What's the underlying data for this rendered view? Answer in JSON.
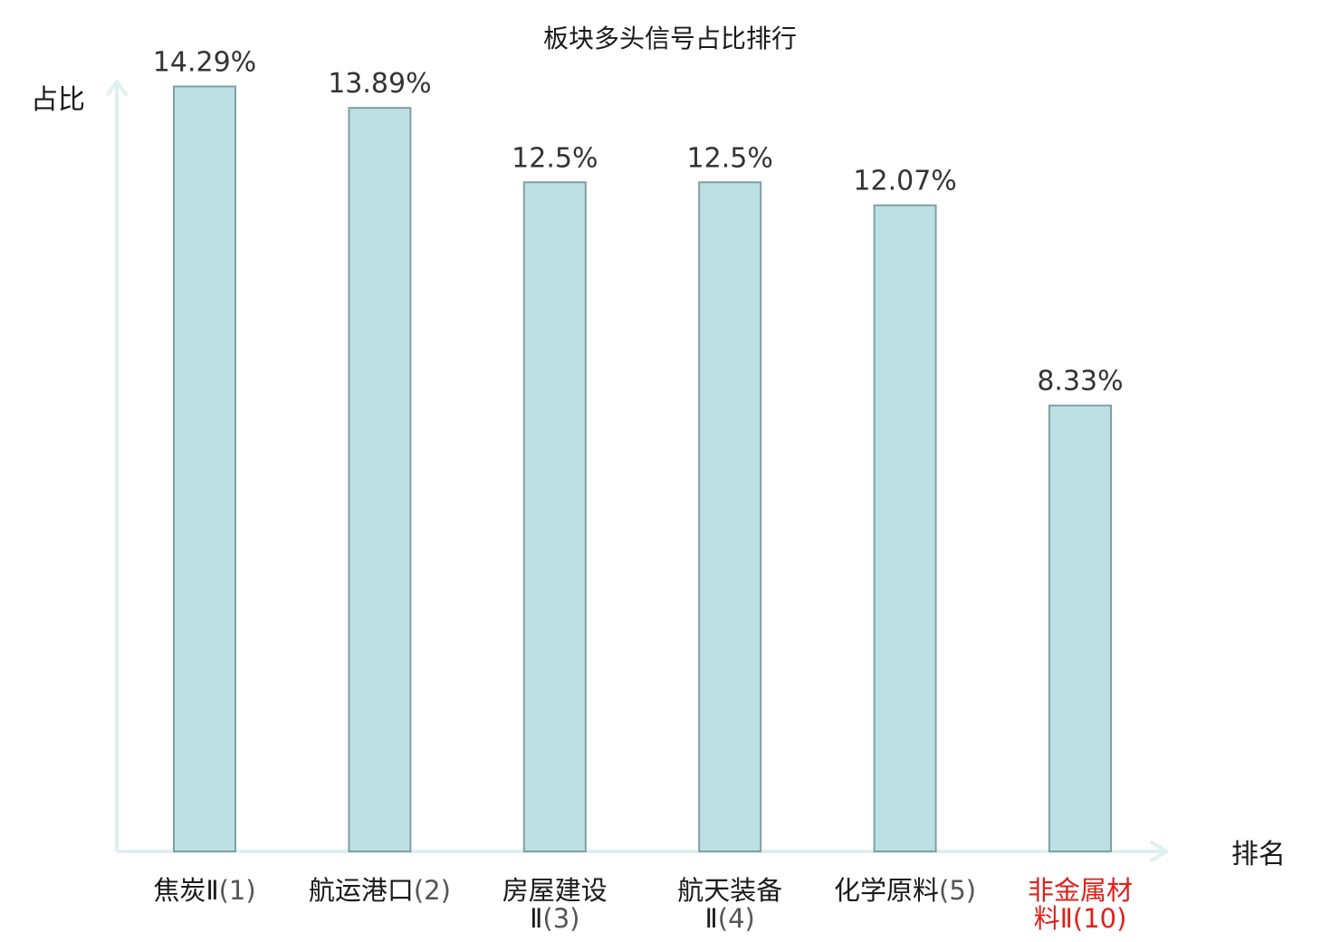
{
  "chart_data": {
    "type": "bar",
    "title": "板块多头信号占比排行",
    "ylabel": "占比",
    "xlabel": "排名",
    "ylim": [
      0,
      15
    ],
    "grid": false,
    "legend": "none",
    "categories": [
      {
        "lines": [
          "焦炭Ⅱ"
        ],
        "rank": "(1)",
        "highlight": false
      },
      {
        "lines": [
          "航运港口"
        ],
        "rank": "(2)",
        "highlight": false
      },
      {
        "lines": [
          "房屋建设",
          "Ⅱ"
        ],
        "rank": "(3)",
        "highlight": false
      },
      {
        "lines": [
          "航天装备",
          "Ⅱ"
        ],
        "rank": "(4)",
        "highlight": false
      },
      {
        "lines": [
          "化学原料"
        ],
        "rank": "(5)",
        "highlight": false
      },
      {
        "lines": [
          "非金属材",
          "料Ⅱ"
        ],
        "rank": "(10)",
        "highlight": true
      }
    ],
    "values": [
      14.29,
      13.89,
      12.5,
      12.5,
      12.07,
      8.33
    ],
    "value_labels": [
      "14.29%",
      "13.89%",
      "12.5%",
      "12.5%",
      "12.07%",
      "8.33%"
    ],
    "colors": {
      "bar_fill": "#bce0e3",
      "bar_stroke": "#7fa0a3",
      "axis": "#dff1ee",
      "highlight_label": "#e0201b"
    }
  }
}
